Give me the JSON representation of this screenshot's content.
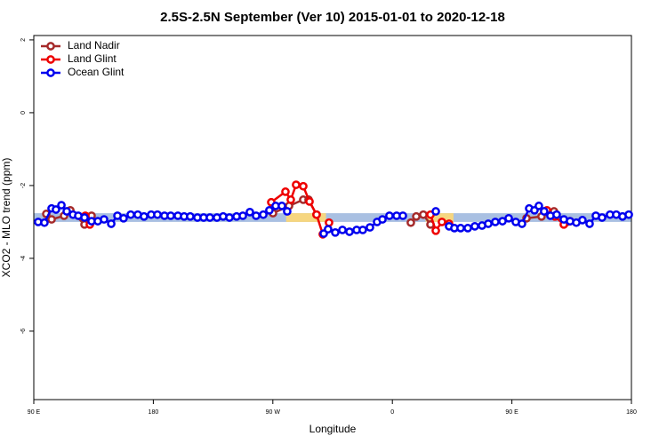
{
  "chart_data": {
    "type": "line",
    "title": "2.5S-2.5N September (Ver 10)   2015-01-01 to 2020-12-18",
    "xlabel": "Longitude",
    "ylabel": "XCO2 - MLO trend (ppm)",
    "xlim": [
      90,
      540
    ],
    "ylim": [
      -7.88,
      2.12
    ],
    "xticks": [
      {
        "value": 90,
        "label": "90 E"
      },
      {
        "value": 180,
        "label": "180"
      },
      {
        "value": 270,
        "label": "90 W"
      },
      {
        "value": 360,
        "label": "0"
      },
      {
        "value": 450,
        "label": "90 E"
      },
      {
        "value": 540,
        "label": "180"
      }
    ],
    "yticks": [
      2,
      0,
      -2,
      -4,
      -6
    ],
    "legend": "top-left",
    "bands": [
      {
        "color": "#a9c0e2",
        "x": [
          90,
          540
        ],
        "y": [
          -2.76,
          -3.0
        ]
      },
      {
        "color": "#f6d680",
        "x": [
          280,
          310
        ],
        "y": [
          -2.76,
          -3.0
        ]
      },
      {
        "color": "#f6d680",
        "x": [
          385,
          406
        ],
        "y": [
          -2.76,
          -3.0
        ]
      }
    ],
    "series": [
      {
        "name": "Land Nadir",
        "color": "#a52a2a",
        "x": [
          99.4,
          103.4,
          112.8,
          117.5,
          128.2,
          133.5,
          null,
          270.1,
          282.2,
          292.9,
          296.9,
          302.9,
          null,
          373.9,
          378,
          383.3,
          388.7,
          null,
          461,
          472.3,
          481.7,
          490.5
        ],
        "values": [
          -2.78,
          -2.93,
          -2.83,
          -2.68,
          -3.07,
          -2.83,
          null,
          -2.76,
          -2.56,
          -2.39,
          -2.39,
          -2.8,
          null,
          -3.02,
          -2.85,
          -2.8,
          -3.07,
          null,
          -2.9,
          -2.85,
          -2.71,
          -3.02
        ]
      },
      {
        "name": "Land Glint",
        "color": "#ee0000",
        "x": [
          128.8,
          132.2,
          null,
          268.8,
          279.5,
          283.5,
          287.5,
          292.9,
          297.6,
          302.9,
          307.6,
          312.3,
          null,
          388.7,
          392.7,
          397.3,
          402.7,
          null,
          476.4,
          482.4,
          489.1,
          493.8
        ],
        "values": [
          -2.83,
          -3.07,
          null,
          -2.46,
          -2.17,
          -2.39,
          -1.98,
          -2.02,
          -2.44,
          -2.8,
          -3.34,
          -3.02,
          null,
          -2.8,
          -3.24,
          -3.0,
          -3.05,
          null,
          -2.68,
          -2.85,
          -3.07,
          -2.98
        ]
      },
      {
        "name": "Ocean Glint",
        "color": "#0000ee",
        "x": [
          93.3,
          98,
          103.4,
          106.7,
          110.8,
          114.8,
          119.5,
          123.5,
          128.2,
          133.5,
          138.2,
          142.9,
          148.3,
          153,
          157.6,
          163,
          168.3,
          173,
          178.4,
          183.1,
          188.4,
          193.1,
          198.5,
          203.2,
          207.8,
          213.2,
          217.9,
          222.6,
          227.9,
          232.6,
          237.3,
          242.7,
          247.4,
          252.7,
          257.4,
          262.8,
          267.4,
          272.1,
          276.8,
          280.8,
          null,
          308.3,
          311.6,
          317,
          322.4,
          327.7,
          333.1,
          337.7,
          343.1,
          348.5,
          352.5,
          357.8,
          363.2,
          367.9,
          null,
          392.7,
          null,
          402.7,
          406.7,
          411.4,
          416.8,
          422.1,
          427.5,
          432.2,
          437.5,
          442.9,
          447.6,
          452.9,
          457.6,
          463,
          467,
          470.3,
          474.3,
          479,
          483.7,
          489.1,
          493.8,
          498.5,
          503.1,
          508.5,
          513.2,
          517.9,
          523.9,
          528.6,
          533.3,
          538
        ],
        "values": [
          -3.0,
          -3.02,
          -2.63,
          -2.66,
          -2.54,
          -2.71,
          -2.8,
          -2.83,
          -2.88,
          -2.98,
          -2.98,
          -2.93,
          -3.05,
          -2.83,
          -2.9,
          -2.8,
          -2.8,
          -2.85,
          -2.8,
          -2.8,
          -2.83,
          -2.83,
          -2.83,
          -2.85,
          -2.85,
          -2.88,
          -2.88,
          -2.88,
          -2.88,
          -2.85,
          -2.88,
          -2.85,
          -2.83,
          -2.73,
          -2.83,
          -2.8,
          -2.68,
          -2.56,
          -2.56,
          -2.71,
          null,
          -3.32,
          -3.2,
          -3.29,
          -3.22,
          -3.27,
          -3.22,
          -3.22,
          -3.15,
          -3.0,
          -2.93,
          -2.83,
          -2.83,
          -2.83,
          null,
          -2.71,
          null,
          -3.12,
          -3.17,
          -3.17,
          -3.17,
          -3.12,
          -3.1,
          -3.05,
          -3.0,
          -2.98,
          -2.9,
          -3.0,
          -3.05,
          -2.63,
          -2.68,
          -2.56,
          -2.71,
          -2.83,
          -2.8,
          -2.93,
          -2.98,
          -3.02,
          -2.95,
          -3.05,
          -2.83,
          -2.88,
          -2.8,
          -2.8,
          -2.85,
          -2.8
        ]
      }
    ]
  }
}
